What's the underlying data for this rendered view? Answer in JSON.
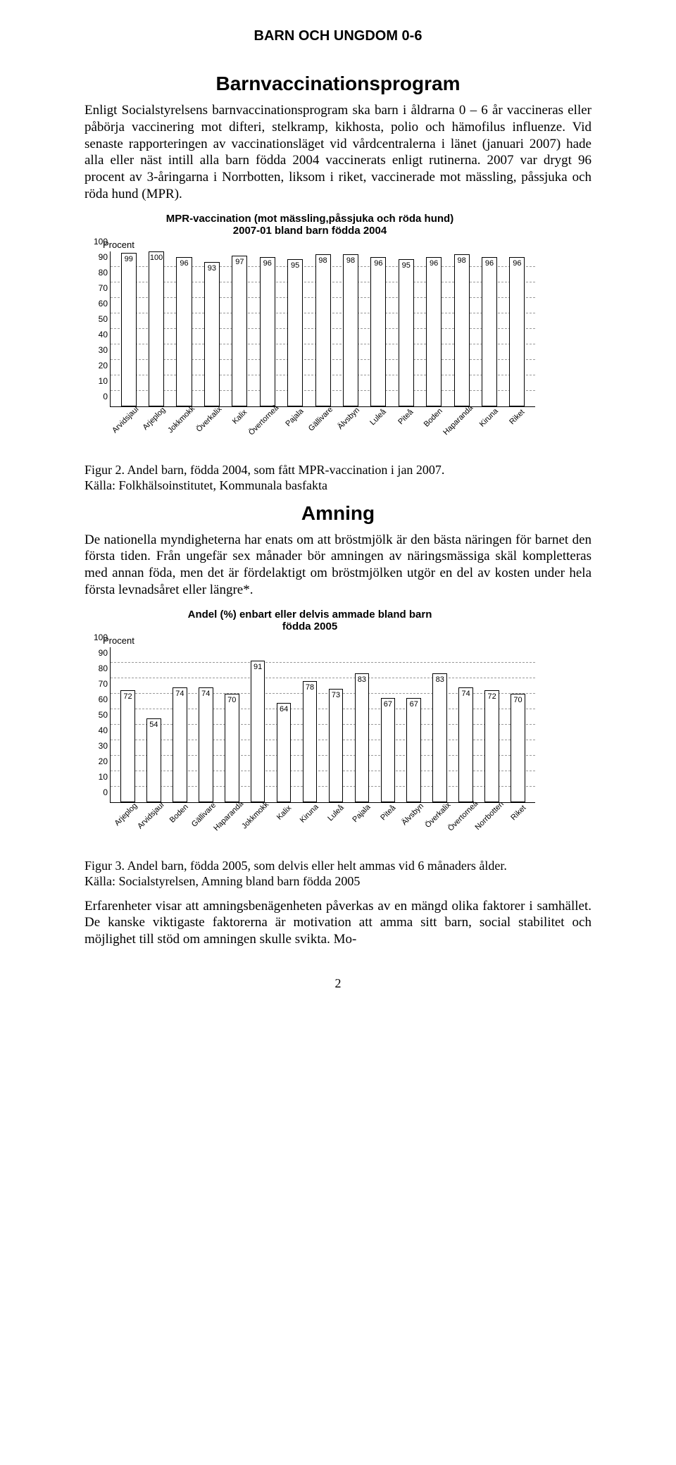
{
  "header": "BARN OCH UNGDOM 0-6",
  "section1": {
    "title": "Barnvaccinationsprogram",
    "para": "Enligt Socialstyrelsens barnvaccinationsprogram ska barn i åldrarna 0 – 6 år vaccineras eller påbörja vaccinering mot difteri, stelkramp, kikhosta, polio och hämofilus influenze. Vid senaste rapporteringen av vaccinationsläget vid vårdcentralerna i länet (januari 2007) hade alla eller näst intill alla barn födda 2004 vaccinerats enligt rutinerna. 2007 var drygt 96 procent av 3-åringarna i Norrbotten, liksom i riket, vaccinerade mot mässling, påssjuka och röda hund (MPR)."
  },
  "chart1": {
    "title": "MPR-vaccination (mot mässling,påssjuka och röda hund)\n2007-01 bland barn födda 2004",
    "ylabel": "Procent",
    "ylim": [
      0,
      100
    ],
    "ytick_step": 10,
    "grid_color": "#9a9a9a",
    "bar_color": "#ffffff",
    "bar_border": "#000000",
    "categories": [
      "Arvidsjaur",
      "Arjeplog",
      "Jokkmokk",
      "Överkalix",
      "Kalix",
      "Övertorneå",
      "Pajala",
      "Gällivare",
      "Älvsbyn",
      "Luleå",
      "Piteå",
      "Boden",
      "Haparanda",
      "Kiruna",
      "Riket"
    ],
    "values": [
      99,
      100,
      96,
      93,
      97,
      96,
      95,
      98,
      98,
      96,
      95,
      96,
      98,
      96,
      96
    ],
    "caption": "Figur 2. Andel barn, födda 2004, som fått MPR-vaccination i jan 2007.\nKälla: Folkhälsoinstitutet, Kommunala basfakta"
  },
  "section2": {
    "title": "Amning",
    "para": "De nationella myndigheterna har enats om att bröstmjölk är den bästa näringen för barnet den första tiden. Från ungefär sex månader bör amningen av näringsmässiga skäl kompletteras med annan föda, men det är fördelaktigt om bröstmjölken utgör en del av kosten under hela första levnadsåret eller längre*."
  },
  "chart2": {
    "title": "Andel (%) enbart eller delvis ammade bland barn\nfödda 2005",
    "ylabel": "Procent",
    "ylim": [
      0,
      100
    ],
    "ytick_step": 10,
    "grid_color": "#9a9a9a",
    "bar_color": "#ffffff",
    "bar_border": "#000000",
    "categories": [
      "Arjeplog",
      "Arvidsjaur",
      "Boden",
      "Gällivare",
      "Haparanda",
      "Jokkmokk",
      "Kalix",
      "Kiruna",
      "Luleå",
      "Pajala",
      "Piteå",
      "Älvsbyn",
      "Överkalix",
      "Övertorneå",
      "Norrbotten",
      "Riket"
    ],
    "values": [
      72,
      54,
      74,
      74,
      70,
      91,
      64,
      78,
      73,
      83,
      67,
      67,
      83,
      74,
      72,
      70
    ],
    "caption": "Figur 3. Andel barn, födda 2005, som delvis eller helt ammas vid 6 månaders ålder.\nKälla: Socialstyrelsen, Amning bland barn födda 2005"
  },
  "closing_para": "Erfarenheter visar att amningsbenägenheten påverkas av en mängd olika faktorer i samhället. De kanske viktigaste faktorerna är motivation att amma sitt barn, social stabilitet och möjlighet till stöd om amningen skulle svikta. Mo-",
  "page_number": "2"
}
